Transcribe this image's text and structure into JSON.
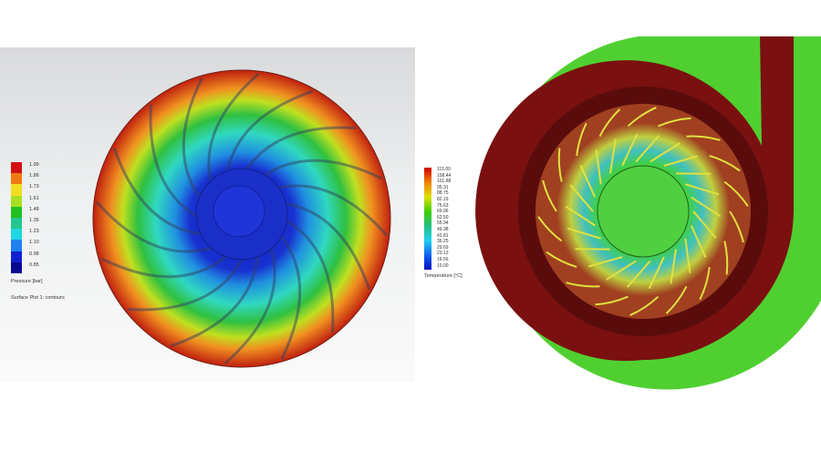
{
  "pressure_plot": {
    "legend_title": "Pressure [bar]",
    "caption": "Surface Plot 1: contours",
    "legend_values": [
      "1.99",
      "1.86",
      "1.73",
      "1.61",
      "1.48",
      "1.35",
      "1.23",
      "1.10",
      "0.98",
      "0.85"
    ],
    "legend_colors": [
      "#d01010",
      "#f07a10",
      "#f0e020",
      "#a8e020",
      "#20c020",
      "#20c890",
      "#20d8e0",
      "#2080f0",
      "#1020d0",
      "#0a0a90"
    ]
  },
  "temperature_plot": {
    "legend_title": "Temperature [°C]",
    "legend_values": [
      "115.00",
      "108.44",
      "101.88",
      "95.31",
      "88.75",
      "82.19",
      "75.63",
      "69.06",
      "62.50",
      "55.94",
      "49.38",
      "42.81",
      "36.25",
      "29.69",
      "23.13",
      "16.56",
      "10.00"
    ]
  }
}
